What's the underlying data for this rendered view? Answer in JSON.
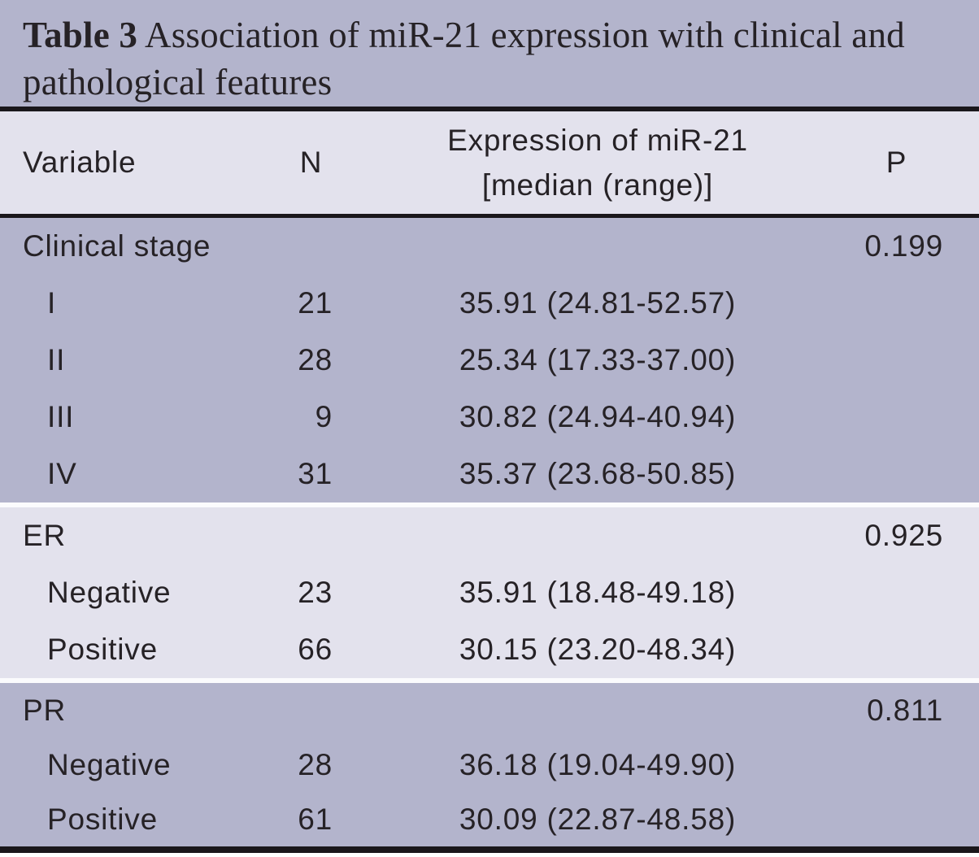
{
  "colors": {
    "band_dark": "#b3b4cc",
    "band_light": "#e3e2ed",
    "rule": "#1a171b",
    "separator": "#fbfbfd",
    "text": "#262226",
    "page_bg": "#ffffff"
  },
  "title": {
    "bold": "Table 3",
    "rest": "Association of miR-21 expression with clinical and pathological features"
  },
  "header": {
    "variable": "Variable",
    "n": "N",
    "expression_line1": "Expression of miR-21",
    "expression_line2": "[median (range)]",
    "p": "P"
  },
  "groups": [
    {
      "id": "clinical-stage",
      "tone": "dark",
      "header": {
        "variable": "Clinical stage",
        "p": "0.199"
      },
      "rows": [
        {
          "variable": "I",
          "n": "21",
          "expression": "35.91 (24.81-52.57)"
        },
        {
          "variable": "II",
          "n": "28",
          "expression": "25.34 (17.33-37.00)"
        },
        {
          "variable": "III",
          "n": "9",
          "expression": "30.82 (24.94-40.94)"
        },
        {
          "variable": "IV",
          "n": "31",
          "expression": "35.37 (23.68-50.85)"
        }
      ]
    },
    {
      "id": "er",
      "tone": "light",
      "header": {
        "variable": "ER",
        "p": "0.925"
      },
      "rows": [
        {
          "variable": "Negative",
          "n": "23",
          "expression": "35.91 (18.48-49.18)"
        },
        {
          "variable": "Positive",
          "n": "66",
          "expression": "30.15 (23.20-48.34)"
        }
      ]
    },
    {
      "id": "pr",
      "tone": "dark",
      "header": {
        "variable": "PR",
        "p": "0.811"
      },
      "rows": [
        {
          "variable": "Negative",
          "n": "28",
          "expression": "36.18 (19.04-49.90)"
        },
        {
          "variable": "Positive",
          "n": "61",
          "expression": "30.09 (22.87-48.58)"
        }
      ]
    }
  ]
}
